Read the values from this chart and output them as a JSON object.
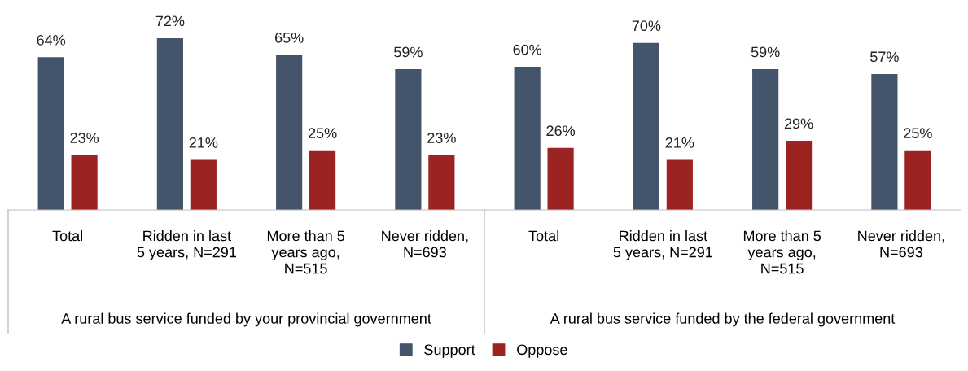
{
  "chart_data": {
    "type": "bar",
    "categories": [
      "Total",
      "Ridden in last 5 years, N=291",
      "More than 5 years ago, N=515",
      "Never ridden, N=693",
      "Total",
      "Ridden in last 5 years, N=291",
      "More than 5 years ago, N=515",
      "Never ridden, N=693"
    ],
    "series": [
      {
        "name": "Support",
        "color": "#44546a",
        "values": [
          64,
          72,
          65,
          59,
          60,
          70,
          59,
          57
        ],
        "value_labels": [
          "64%",
          "72%",
          "65%",
          "59%",
          "60%",
          "70%",
          "59%",
          "57%"
        ]
      },
      {
        "name": "Oppose",
        "color": "#9b2423",
        "values": [
          23,
          21,
          25,
          23,
          26,
          21,
          29,
          25
        ],
        "value_labels": [
          "23%",
          "21%",
          "25%",
          "23%",
          "26%",
          "21%",
          "29%",
          "25%"
        ]
      }
    ],
    "annotations": [
      "A rural bus service funded by your provincial government",
      "A rural bus service funded by the federal government"
    ],
    "legend": "bottom",
    "grid": false
  }
}
